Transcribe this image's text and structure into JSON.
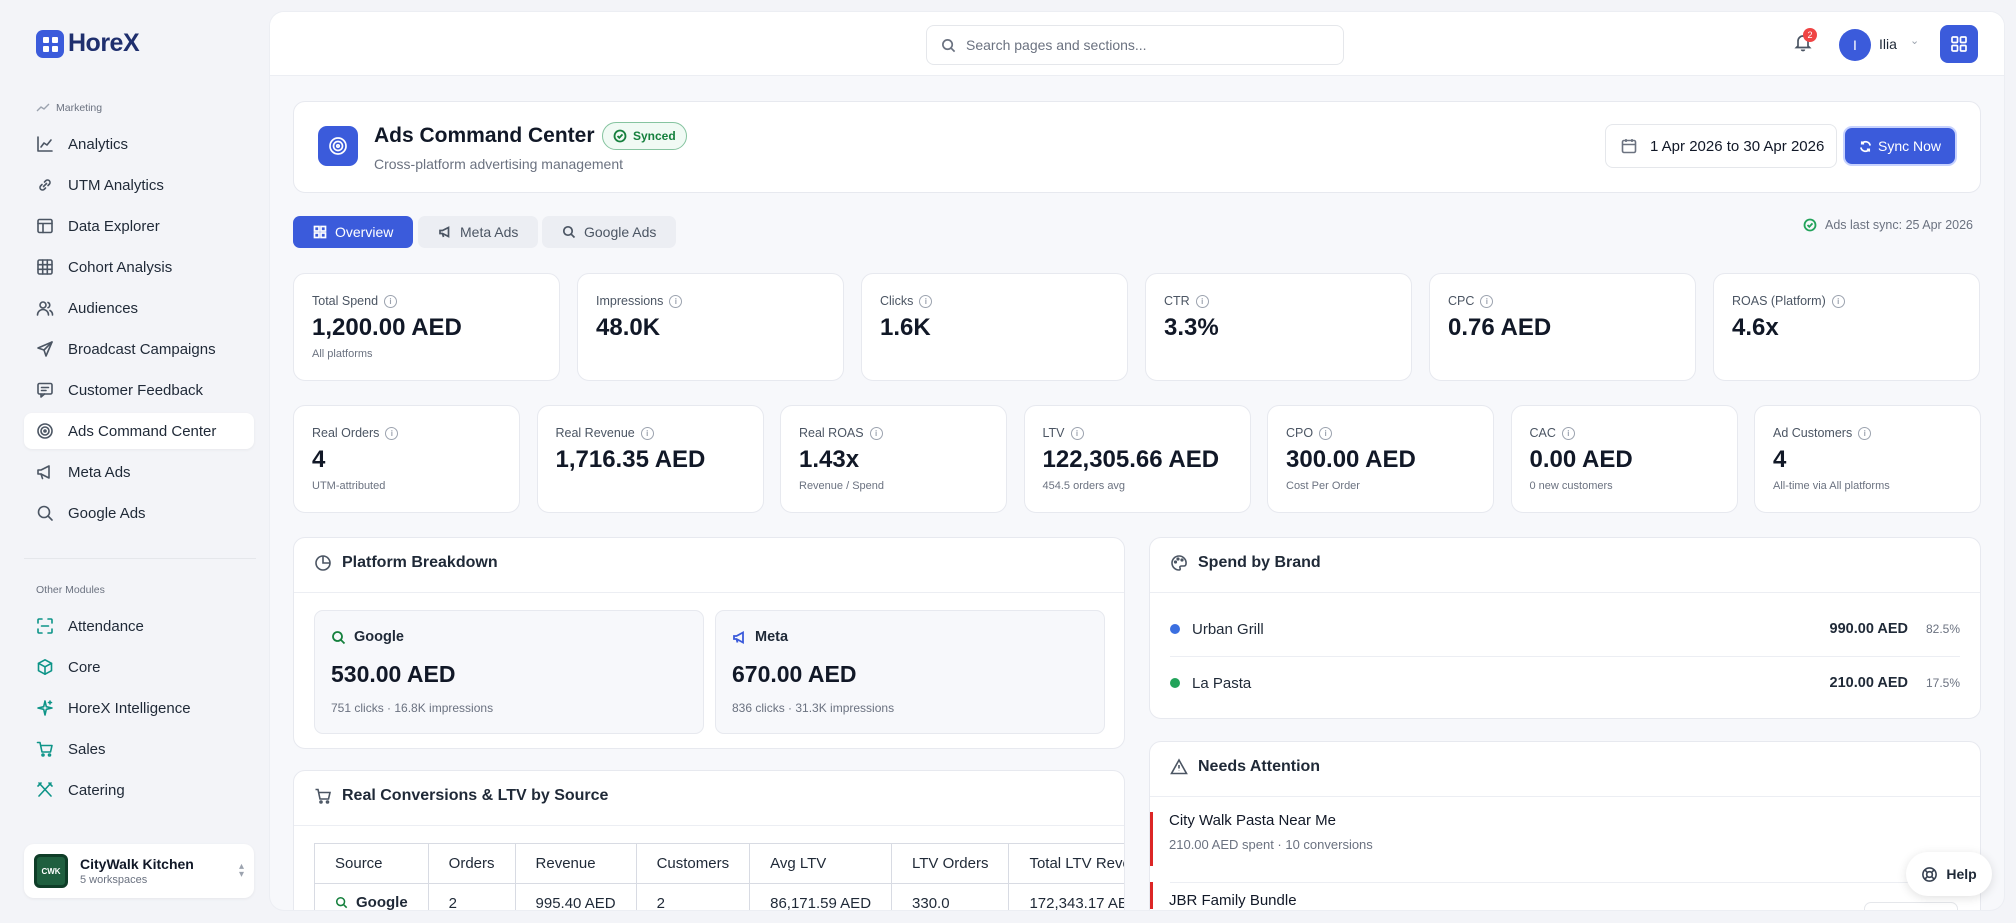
{
  "brand": {
    "name": "HoreX"
  },
  "sidebar": {
    "marketing_label": "Marketing",
    "marketing_items": [
      {
        "label": "Analytics",
        "icon": "chart-icon"
      },
      {
        "label": "UTM Analytics",
        "icon": "link-icon"
      },
      {
        "label": "Data Explorer",
        "icon": "table-icon"
      },
      {
        "label": "Cohort Analysis",
        "icon": "grid-icon"
      },
      {
        "label": "Audiences",
        "icon": "users-icon"
      },
      {
        "label": "Broadcast Campaigns",
        "icon": "send-icon"
      },
      {
        "label": "Customer Feedback",
        "icon": "message-icon"
      },
      {
        "label": "Ads Command Center",
        "icon": "target-icon",
        "active": true
      },
      {
        "label": "Meta Ads",
        "icon": "megaphone-icon"
      },
      {
        "label": "Google Ads",
        "icon": "search-icon"
      }
    ],
    "other_label": "Other Modules",
    "other_items": [
      {
        "label": "Attendance",
        "icon": "scan-icon"
      },
      {
        "label": "Core",
        "icon": "box-icon"
      },
      {
        "label": "HoreX Intelligence",
        "icon": "sparkle-icon"
      },
      {
        "label": "Sales",
        "icon": "cart-icon"
      },
      {
        "label": "Catering",
        "icon": "utensils-icon"
      }
    ],
    "workspace": {
      "name": "CityWalk Kitchen",
      "sub": "5 workspaces",
      "logo_text": "CWK"
    }
  },
  "topbar": {
    "search_placeholder": "Search pages and sections...",
    "notification_count": "2",
    "user_initial": "I",
    "user_name": "Ilia"
  },
  "header": {
    "title": "Ads Command Center",
    "badge": "Synced",
    "subtitle": "Cross-platform advertising management",
    "date_range": "1 Apr 2026 to 30 Apr 2026",
    "sync_label": "Sync Now"
  },
  "tabs": [
    {
      "label": "Overview",
      "active": true
    },
    {
      "label": "Meta Ads"
    },
    {
      "label": "Google Ads"
    }
  ],
  "last_sync": "Ads last sync: 25 Apr 2026",
  "kpis_row1": [
    {
      "label": "Total Spend",
      "value": "1,200.00 AED",
      "sub": "All platforms"
    },
    {
      "label": "Impressions",
      "value": "48.0K",
      "sub": ""
    },
    {
      "label": "Clicks",
      "value": "1.6K",
      "sub": ""
    },
    {
      "label": "CTR",
      "value": "3.3%",
      "sub": ""
    },
    {
      "label": "CPC",
      "value": "0.76 AED",
      "sub": ""
    },
    {
      "label": "ROAS (Platform)",
      "value": "4.6x",
      "sub": ""
    }
  ],
  "kpis_row2": [
    {
      "label": "Real Orders",
      "value": "4",
      "sub": "UTM-attributed"
    },
    {
      "label": "Real Revenue",
      "value": "1,716.35 AED",
      "sub": ""
    },
    {
      "label": "Real ROAS",
      "value": "1.43x",
      "sub": "Revenue / Spend"
    },
    {
      "label": "LTV",
      "value": "122,305.66 AED",
      "sub": "454.5 orders avg"
    },
    {
      "label": "CPO",
      "value": "300.00 AED",
      "sub": "Cost Per Order"
    },
    {
      "label": "CAC",
      "value": "0.00 AED",
      "sub": "0 new customers"
    },
    {
      "label": "Ad Customers",
      "value": "4",
      "sub": "All-time via All platforms"
    }
  ],
  "platform_breakdown": {
    "title": "Platform Breakdown",
    "platforms": [
      {
        "name": "Google",
        "value": "530.00 AED",
        "sub": "751 clicks · 16.8K impressions"
      },
      {
        "name": "Meta",
        "value": "670.00 AED",
        "sub": "836 clicks · 31.3K impressions"
      }
    ]
  },
  "spend_by_brand": {
    "title": "Spend by Brand",
    "rows": [
      {
        "name": "Urban Grill",
        "amount": "990.00 AED",
        "pct": "82.5%",
        "color": "#3b6fe0"
      },
      {
        "name": "La Pasta",
        "amount": "210.00 AED",
        "pct": "17.5%",
        "color": "#22a35a"
      }
    ]
  },
  "needs_attention": {
    "title": "Needs Attention",
    "items": [
      {
        "title": "City Walk Pasta Near Me",
        "sub": "210.00 AED spent · 10 conversions"
      },
      {
        "title": "JBR Family Bundle",
        "sub": ""
      }
    ]
  },
  "conversions": {
    "title": "Real Conversions & LTV by Source",
    "headers": [
      "Source",
      "Orders",
      "Revenue",
      "Customers",
      "Avg LTV",
      "LTV Orders",
      "Total LTV Rever"
    ],
    "rows": [
      [
        "Google",
        "2",
        "995.40 AED",
        "2",
        "86,171.59 AED",
        "330.0",
        "172,343.17 AED"
      ]
    ]
  },
  "help_label": "Help"
}
